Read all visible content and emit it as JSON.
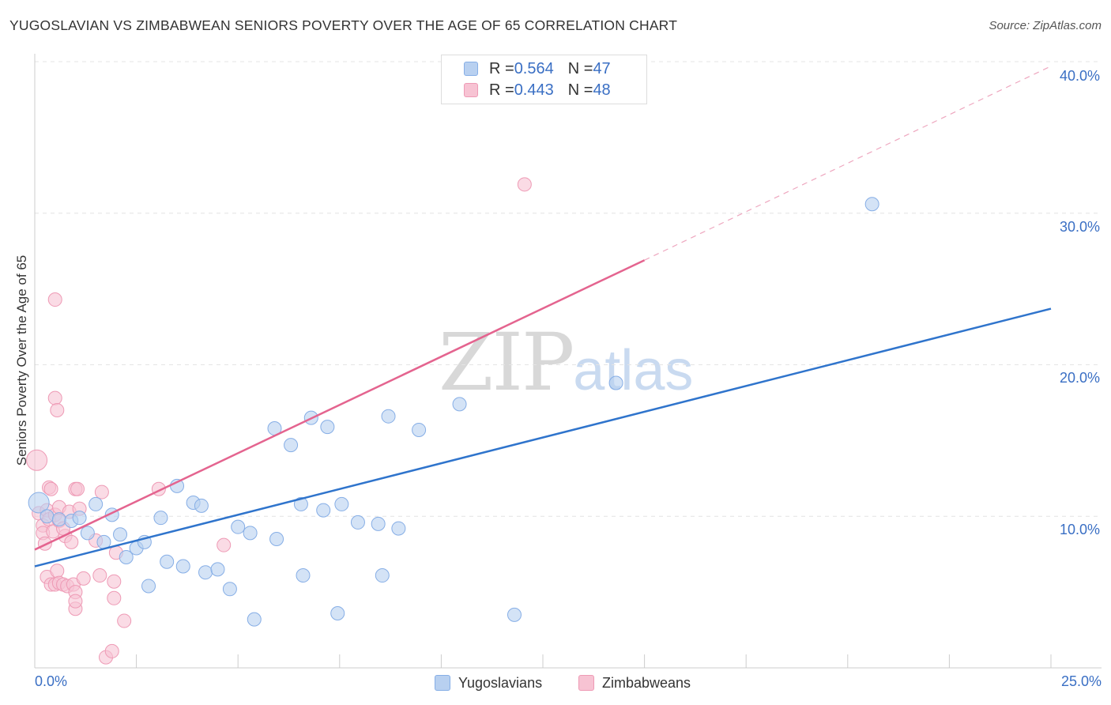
{
  "title": "YUGOSLAVIAN VS ZIMBABWEAN SENIORS POVERTY OVER THE AGE OF 65 CORRELATION CHART",
  "source": "Source: ZipAtlas.com",
  "watermark": {
    "zip": "ZIP",
    "atlas": "atlas"
  },
  "colors": {
    "blue_fill": "#b8d0f0",
    "blue_stroke": "#86aee6",
    "blue_line": "#2f74cc",
    "pink_fill": "#f7c3d3",
    "pink_stroke": "#ee9ab5",
    "pink_line": "#e4648f",
    "grid": "#e4e4e4",
    "axis": "#cccccc",
    "accent_text": "#3a6fc4"
  },
  "legend_top": [
    {
      "r_label": "R = ",
      "r_value": "0.564",
      "n_label": "N = ",
      "n_value": "47",
      "color": "#b8d0f0"
    },
    {
      "r_label": "R = ",
      "r_value": "0.443",
      "n_label": "N = ",
      "n_value": "48",
      "color": "#f7c3d3"
    }
  ],
  "chart_data": {
    "type": "scatter",
    "title": "YUGOSLAVIAN VS ZIMBABWEAN SENIORS POVERTY OVER THE AGE OF 65 CORRELATION CHART",
    "xlabel": "",
    "ylabel": "Seniors Poverty Over the Age of 65",
    "xlim": [
      0,
      25
    ],
    "ylim": [
      0,
      40
    ],
    "x_tick_labels": [
      "0.0%",
      "25.0%"
    ],
    "y_tick_labels": [
      "10.0%",
      "20.0%",
      "30.0%",
      "40.0%"
    ],
    "y_ticks": [
      10,
      20,
      30,
      40
    ],
    "x_minor_ticks": [
      2.5,
      5,
      7.5,
      10,
      12.5,
      15,
      17.5,
      20,
      22.5,
      25
    ],
    "legend_position": "bottom-center",
    "series": [
      {
        "name": "Yugoslavians",
        "r": 0.564,
        "n": 47,
        "trend": {
          "x": [
            0,
            25
          ],
          "y": [
            6.7,
            23.7
          ],
          "dashed_to": null
        },
        "points": [
          {
            "x": 0.1,
            "y": 10.9,
            "big": true
          },
          {
            "x": 0.3,
            "y": 10.0
          },
          {
            "x": 0.6,
            "y": 9.8
          },
          {
            "x": 0.9,
            "y": 9.7
          },
          {
            "x": 1.1,
            "y": 9.9
          },
          {
            "x": 1.3,
            "y": 8.9
          },
          {
            "x": 1.5,
            "y": 10.8
          },
          {
            "x": 1.7,
            "y": 8.3
          },
          {
            "x": 1.9,
            "y": 10.1
          },
          {
            "x": 2.1,
            "y": 8.8
          },
          {
            "x": 2.25,
            "y": 7.3
          },
          {
            "x": 2.5,
            "y": 7.9
          },
          {
            "x": 2.7,
            "y": 8.3
          },
          {
            "x": 2.8,
            "y": 5.4
          },
          {
            "x": 3.1,
            "y": 9.9
          },
          {
            "x": 3.25,
            "y": 7.0
          },
          {
            "x": 3.5,
            "y": 12.0
          },
          {
            "x": 3.65,
            "y": 6.7
          },
          {
            "x": 3.9,
            "y": 10.9
          },
          {
            "x": 4.1,
            "y": 10.7
          },
          {
            "x": 4.2,
            "y": 6.3
          },
          {
            "x": 4.5,
            "y": 6.5
          },
          {
            "x": 4.8,
            "y": 5.2
          },
          {
            "x": 5.0,
            "y": 9.3
          },
          {
            "x": 5.3,
            "y": 8.9
          },
          {
            "x": 5.4,
            "y": 3.2
          },
          {
            "x": 5.9,
            "y": 15.8
          },
          {
            "x": 5.95,
            "y": 8.5
          },
          {
            "x": 6.3,
            "y": 14.7
          },
          {
            "x": 6.55,
            "y": 10.8
          },
          {
            "x": 6.6,
            "y": 6.1
          },
          {
            "x": 6.8,
            "y": 16.5
          },
          {
            "x": 7.1,
            "y": 10.4
          },
          {
            "x": 7.2,
            "y": 15.9
          },
          {
            "x": 7.45,
            "y": 3.6
          },
          {
            "x": 7.55,
            "y": 10.8
          },
          {
            "x": 7.95,
            "y": 9.6
          },
          {
            "x": 8.45,
            "y": 9.5
          },
          {
            "x": 8.55,
            "y": 6.1
          },
          {
            "x": 8.7,
            "y": 16.6
          },
          {
            "x": 8.95,
            "y": 9.2
          },
          {
            "x": 9.45,
            "y": 15.7
          },
          {
            "x": 10.45,
            "y": 17.4
          },
          {
            "x": 11.8,
            "y": 3.5
          },
          {
            "x": 14.3,
            "y": 18.8
          },
          {
            "x": 20.6,
            "y": 30.6
          }
        ]
      },
      {
        "name": "Zimbabweans",
        "r": 0.443,
        "n": 48,
        "trend": {
          "x": [
            0,
            15
          ],
          "y": [
            7.8,
            26.9
          ],
          "dashed_to": [
            25,
            39.7
          ]
        },
        "points": [
          {
            "x": 0.05,
            "y": 13.7,
            "big": true
          },
          {
            "x": 0.1,
            "y": 10.2
          },
          {
            "x": 0.2,
            "y": 9.4
          },
          {
            "x": 0.2,
            "y": 8.9
          },
          {
            "x": 0.25,
            "y": 8.2
          },
          {
            "x": 0.3,
            "y": 10.4
          },
          {
            "x": 0.3,
            "y": 6.0
          },
          {
            "x": 0.35,
            "y": 11.9
          },
          {
            "x": 0.35,
            "y": 9.8
          },
          {
            "x": 0.4,
            "y": 11.8
          },
          {
            "x": 0.4,
            "y": 5.5
          },
          {
            "x": 0.45,
            "y": 9.0
          },
          {
            "x": 0.5,
            "y": 17.8
          },
          {
            "x": 0.5,
            "y": 5.5
          },
          {
            "x": 0.5,
            "y": 24.3
          },
          {
            "x": 0.5,
            "y": 10.1
          },
          {
            "x": 0.55,
            "y": 17.0
          },
          {
            "x": 0.55,
            "y": 6.4
          },
          {
            "x": 0.6,
            "y": 10.6
          },
          {
            "x": 0.6,
            "y": 9.7
          },
          {
            "x": 0.6,
            "y": 5.6
          },
          {
            "x": 0.7,
            "y": 5.5
          },
          {
            "x": 0.75,
            "y": 8.7
          },
          {
            "x": 0.7,
            "y": 9.2
          },
          {
            "x": 0.8,
            "y": 5.4
          },
          {
            "x": 0.85,
            "y": 10.3
          },
          {
            "x": 0.9,
            "y": 8.3
          },
          {
            "x": 0.95,
            "y": 5.5
          },
          {
            "x": 1.0,
            "y": 11.8
          },
          {
            "x": 1.0,
            "y": 5.0
          },
          {
            "x": 1.0,
            "y": 3.9
          },
          {
            "x": 1.0,
            "y": 4.4
          },
          {
            "x": 1.05,
            "y": 11.8
          },
          {
            "x": 1.1,
            "y": 10.5
          },
          {
            "x": 1.2,
            "y": 5.9
          },
          {
            "x": 1.5,
            "y": 8.4
          },
          {
            "x": 1.6,
            "y": 6.1
          },
          {
            "x": 1.65,
            "y": 11.6
          },
          {
            "x": 1.75,
            "y": 0.7
          },
          {
            "x": 1.9,
            "y": 1.1
          },
          {
            "x": 1.95,
            "y": 4.6
          },
          {
            "x": 1.95,
            "y": 5.7
          },
          {
            "x": 2.0,
            "y": 7.6
          },
          {
            "x": 2.2,
            "y": 3.1
          },
          {
            "x": 3.05,
            "y": 11.8
          },
          {
            "x": 4.65,
            "y": 8.1
          },
          {
            "x": 12.05,
            "y": 31.9
          }
        ]
      }
    ]
  },
  "x_axis": {
    "left_label": "0.0%",
    "right_label": "25.0%"
  },
  "y_axis": {
    "title": "Seniors Poverty Over the Age of 65"
  },
  "legend_bottom": [
    {
      "label": "Yugoslavians",
      "color": "#b8d0f0"
    },
    {
      "label": "Zimbabweans",
      "color": "#f7c3d3"
    }
  ]
}
